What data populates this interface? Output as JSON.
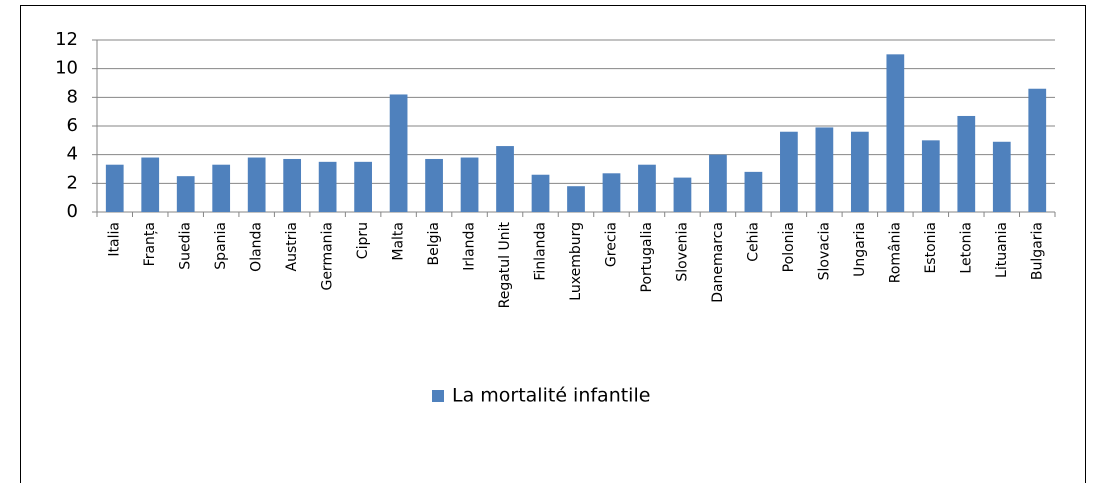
{
  "chart_data": {
    "type": "bar",
    "categories": [
      "Italia",
      "Franța",
      "Suedia",
      "Spania",
      "Olanda",
      "Austria",
      "Germania",
      "Cipru",
      "Malta",
      "Belgia",
      "Irlanda",
      "Regatul Unit",
      "Finlanda",
      "Luxemburg",
      "Grecia",
      "Portugalia",
      "Slovenia",
      "Danemarca",
      "Cehia",
      "Polonia",
      "Slovacia",
      "Ungaria",
      "România",
      "Estonia",
      "Letonia",
      "Lituania",
      "Bulgaria"
    ],
    "series": [
      {
        "name": "La mortalité infantile",
        "color": "#4f81bd",
        "values": [
          3.3,
          3.8,
          2.5,
          3.3,
          3.8,
          3.7,
          3.5,
          3.5,
          8.2,
          3.7,
          3.8,
          4.6,
          2.6,
          1.8,
          2.7,
          3.3,
          2.4,
          4.0,
          2.8,
          5.6,
          5.9,
          5.6,
          11.0,
          5.0,
          6.7,
          4.9,
          8.6
        ]
      }
    ],
    "ylim": [
      0,
      12
    ],
    "yticks": [
      0,
      2,
      4,
      6,
      8,
      10,
      12
    ],
    "grid": true,
    "legend": "bottom"
  }
}
